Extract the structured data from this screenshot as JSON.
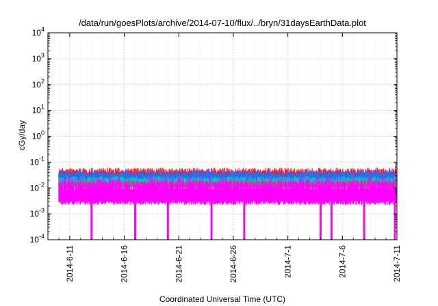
{
  "chart_data": {
    "type": "line",
    "title": "/data/run/goesPlots/archive/2014-07-10/flux/../bryn/31daysEarthData.plot",
    "xlabel": "Coordinated Universal Time (UTC)",
    "ylabel": "cGy/day",
    "yscale": "log",
    "ylim": [
      0.0001,
      10000
    ],
    "xlim": [
      "2014-06-09",
      "2014-07-11"
    ],
    "y_ticks": [
      {
        "value": 0.0001,
        "base": "10",
        "exp": "-4"
      },
      {
        "value": 0.001,
        "base": "10",
        "exp": "-3"
      },
      {
        "value": 0.01,
        "base": "10",
        "exp": "-2"
      },
      {
        "value": 0.1,
        "base": "10",
        "exp": "-1"
      },
      {
        "value": 1,
        "base": "10",
        "exp": "0"
      },
      {
        "value": 10,
        "base": "10",
        "exp": "1"
      },
      {
        "value": 100,
        "base": "10",
        "exp": "2"
      },
      {
        "value": 1000,
        "base": "10",
        "exp": "3"
      },
      {
        "value": 10000,
        "base": "10",
        "exp": "4"
      }
    ],
    "x_ticks": [
      {
        "date": "2014-06-11",
        "label": "2014-6-11"
      },
      {
        "date": "2014-06-16",
        "label": "2014-6-16"
      },
      {
        "date": "2014-06-21",
        "label": "2014-6-21"
      },
      {
        "date": "2014-06-26",
        "label": "2014-6-26"
      },
      {
        "date": "2014-07-01",
        "label": "2014-7-1"
      },
      {
        "date": "2014-07-06",
        "label": "2014-7-6"
      },
      {
        "date": "2014-07-11",
        "label": "2014-7-11"
      }
    ],
    "grid": true,
    "series": [
      {
        "color": "#ff1a1a",
        "band": [
          0.022,
          0.06
        ]
      },
      {
        "color": "#2a6df5",
        "band": [
          0.014,
          0.05
        ]
      },
      {
        "color": "#00c8c8",
        "band": [
          0.012,
          0.028
        ]
      },
      {
        "color": "#777777",
        "band": [
          0.01,
          0.02
        ]
      },
      {
        "color": "#ff00ff",
        "band": [
          0.0022,
          0.025
        ]
      }
    ],
    "dropouts": [
      "2014-06-13",
      "2014-06-17",
      "2014-06-20",
      "2014-06-24",
      "2014-06-27",
      "2014-07-04",
      "2014-07-05",
      "2014-07-08",
      "2014-07-11"
    ]
  }
}
